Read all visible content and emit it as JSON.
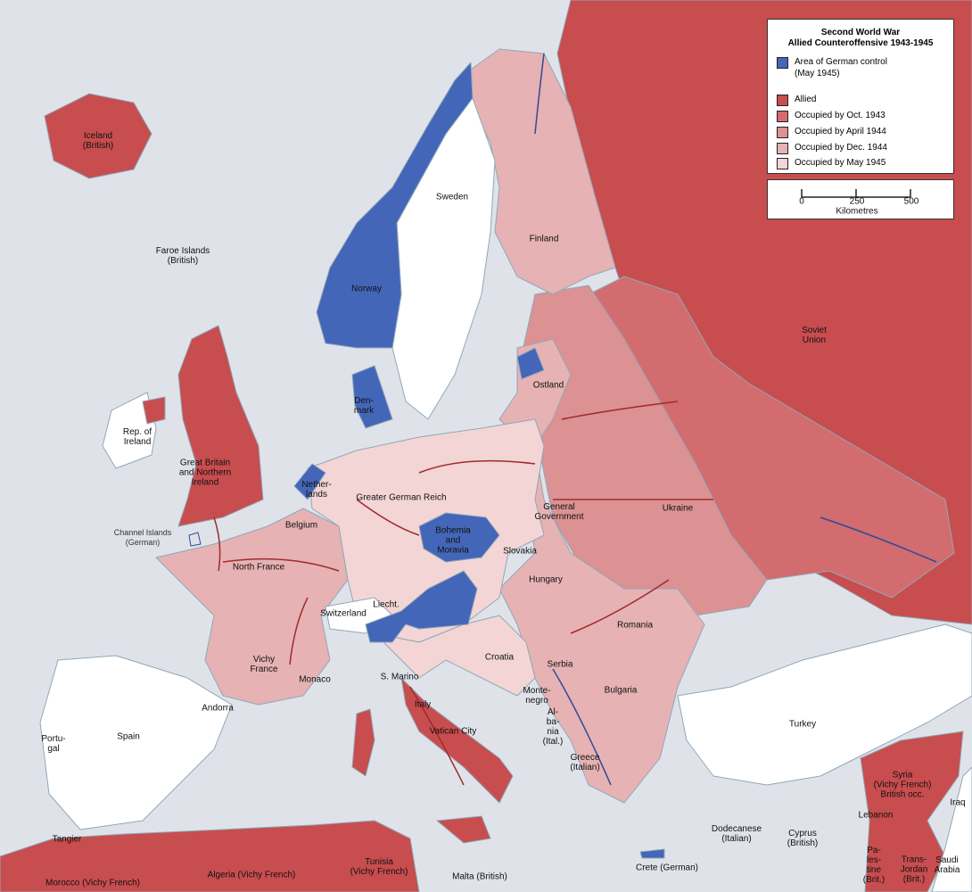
{
  "legend": {
    "title_line1": "Second World War",
    "title_line2": "Allied Counteroffensive 1943-1945",
    "items": [
      {
        "label": "Area of German control\n(May 1945)",
        "color": "#4466b8"
      },
      {
        "label": "Allied",
        "color": "#c84d4f"
      },
      {
        "label": "Occupied by Oct. 1943",
        "color": "#d26c6e"
      },
      {
        "label": "Occupied by April 1944",
        "color": "#dc9192"
      },
      {
        "label": "Occupied by Dec. 1944",
        "color": "#e6b2b3"
      },
      {
        "label": "Occupied by May 1945",
        "color": "#f3d5d6"
      }
    ]
  },
  "scale": {
    "ticks": [
      "0",
      "250",
      "500"
    ],
    "unit": "Kilometres"
  },
  "colors": {
    "sea": "#dfe3e9",
    "neutral": "#ffffff",
    "arrow_allied": "#a02a2e",
    "arrow_german": "#2f4a9a"
  },
  "labels": {
    "iceland": "Iceland\n(British)",
    "faroe": "Faroe Islands\n(British)",
    "sweden": "Sweden",
    "finland": "Finland",
    "norway": "Norway",
    "soviet": "Soviet\nUnion",
    "ireland": "Rep. of\nIreland",
    "gb": "Great Britain\nand Northern\nIreland",
    "denmark": "Den-\nmark",
    "ostland": "Ostland",
    "netherlands": "Nether-\nlands",
    "reich": "Greater German Reich",
    "gen_gov": "General\nGovernment",
    "ukraine": "Ukraine",
    "channel": "Channel Islands\n(German)",
    "belgium": "Belgium",
    "bohemia": "Bohemia\nand\nMoravia",
    "slovakia": "Slovakia",
    "north_france": "North France",
    "hungary": "Hungary",
    "liecht": "Liecht.",
    "switzerland": "Switzerland",
    "romania": "Romania",
    "vichy": "Vichy\nFrance",
    "croatia": "Croatia",
    "serbia": "Serbia",
    "monaco": "Monaco",
    "sanmarino": "S. Marino",
    "bulgaria": "Bulgaria",
    "montenegro": "Monte-\nnegro",
    "andorra": "Andorra",
    "italy": "Italy",
    "albania": "Al-\nba-\nnia\n(Ital.)",
    "spain": "Spain",
    "portugal": "Portu-\ngal",
    "turkey": "Turkey",
    "vatican": "Vatican City",
    "greece": "Greece\n(Italian)",
    "syria": "Syria\n(Vichy French)\nBritish occ.",
    "iraq": "Iraq",
    "lebanon": "Lebanon",
    "dodecanese": "Dodecanese\n(Italian)",
    "cyprus": "Cyprus\n(British)",
    "tangier": "Tangier",
    "palestine": "Pa-\nles-\ntine\n(Brit.)",
    "transjordan": "Trans-\nJordan\n(Brit.)",
    "saudi": "Saudi\nArabia",
    "algeria": "Algeria (Vichy French)",
    "tunisia": "Tunisia\n(Vichy French)",
    "malta": "Malta (British)",
    "crete": "Crete (German)",
    "morocco": "Morocco (Vichy French)"
  }
}
